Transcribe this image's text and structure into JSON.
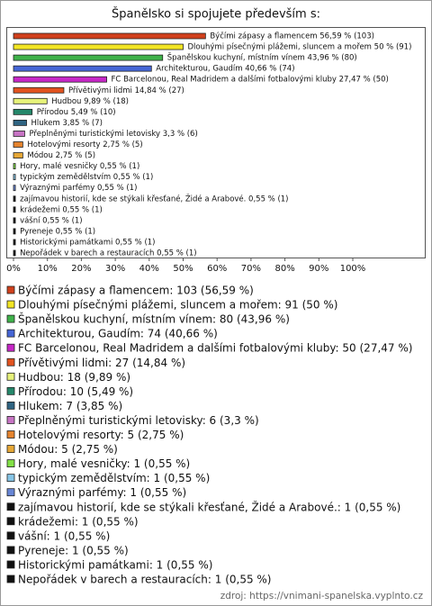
{
  "chart_data": {
    "type": "bar",
    "orientation": "horizontal",
    "title": "Španělsko si spojujete především s:",
    "values": [
      56.59,
      50,
      43.96,
      40.66,
      27.47,
      14.84,
      9.89,
      5.49,
      3.85,
      3.3,
      2.75,
      2.75,
      0.55,
      0.55,
      0.55,
      0.55,
      0.55,
      0.55,
      0.55,
      0.55,
      0.55
    ],
    "value_labels": [
      "Býčími zápasy a flamencem 56,59 % (103)",
      "Dlouhými písečnými plážemi, sluncem a mořem 50 % (91)",
      "Španělskou kuchyní, místním vínem 43,96 % (80)",
      "Architekturou, Gaudím 40,66 % (74)",
      "FC Barcelonou, Real Madridem a dalšími fotbalovými kluby 27,47 % (50)",
      "Přívětivými lidmi 14,84 % (27)",
      "Hudbou 9,89 % (18)",
      "Přírodou 5,49 % (10)",
      "Hlukem 3,85 % (7)",
      "Přeplněnými turistickými letovisky 3,3 % (6)",
      "Hotelovými resorty 2,75 % (5)",
      "Módou 2,75 % (5)",
      "Hory, malé vesničky 0,55 % (1)",
      "typickým zemědělstvím 0,55 % (1)",
      "Výraznými parfémy 0,55 % (1)",
      "zajímavou historií, kde se stýkali křesťané, Židé a Arabové. 0,55 % (1)",
      "krádežemi 0,55 % (1)",
      "vášní 0,55 % (1)",
      "Pyreneje 0,55 % (1)",
      "Historickými památkami 0,55 % (1)",
      "Nepořádek v barech a restauracích 0,55 % (1)"
    ],
    "legend": [
      "Býčími zápasy a flamencem: 103 (56,59 %)",
      "Dlouhými písečnými plážemi, sluncem a mořem: 91 (50 %)",
      "Španělskou kuchyní, místním vínem: 80 (43,96 %)",
      "Architekturou, Gaudím: 74 (40,66 %)",
      "FC Barcelonou, Real Madridem a dalšími fotbalovými kluby: 50 (27,47 %)",
      "Přívětivými lidmi: 27 (14,84 %)",
      "Hudbou: 18 (9,89 %)",
      "Přírodou: 10 (5,49 %)",
      "Hlukem: 7 (3,85 %)",
      "Přeplněnými turistickými letovisky: 6 (3,3 %)",
      "Hotelovými resorty: 5 (2,75 %)",
      "Módou: 5 (2,75 %)",
      "Hory, malé vesničky: 1 (0,55 %)",
      "typickým zemědělstvím: 1 (0,55 %)",
      "Výraznými parfémy: 1 (0,55 %)",
      "zajímavou historií, kde se stýkali křesťané, Židé a Arabové.: 1 (0,55 %)",
      "krádežemi: 1 (0,55 %)",
      "vášní: 1 (0,55 %)",
      "Pyreneje: 1 (0,55 %)",
      "Historickými památkami: 1 (0,55 %)",
      "Nepořádek v barech a restauracích: 1 (0,55 %)"
    ],
    "colors": [
      "#d0401c",
      "#f2e524",
      "#3fb24a",
      "#4566d6",
      "#c627c6",
      "#e2531f",
      "#e6f27a",
      "#24876a",
      "#2f6482",
      "#c774c4",
      "#e5842f",
      "#e6a736",
      "#82e046",
      "#86c5e6",
      "#6886d6",
      "#111111",
      "#111111",
      "#111111",
      "#111111",
      "#111111",
      "#111111"
    ],
    "xlim": [
      0,
      100
    ],
    "xticks": [
      {
        "value": 0,
        "label": "0%"
      },
      {
        "value": 10,
        "label": "10%"
      },
      {
        "value": 20,
        "label": "20%"
      },
      {
        "value": 30,
        "label": "30%"
      },
      {
        "value": 40,
        "label": "40%"
      },
      {
        "value": 50,
        "label": "50%"
      },
      {
        "value": 60,
        "label": "60%"
      },
      {
        "value": 70,
        "label": "70%"
      },
      {
        "value": 80,
        "label": "80%"
      },
      {
        "value": 90,
        "label": "90%"
      },
      {
        "value": 100,
        "label": "100%"
      }
    ]
  },
  "source": "zdroj: https://vnimani-spanelska.vyplnto.cz"
}
